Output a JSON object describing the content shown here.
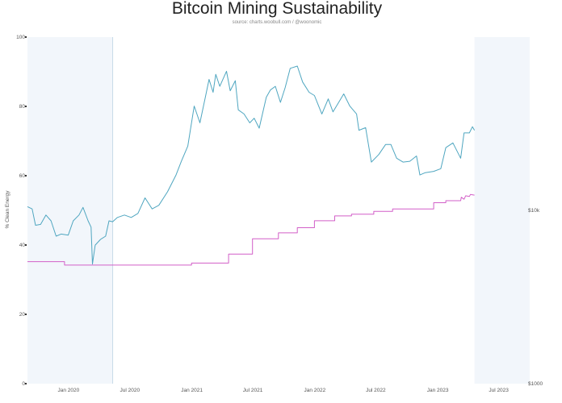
{
  "chart_data": {
    "type": "line",
    "title": "Bitcoin Mining Sustainability",
    "subtitle": "source: charts.woobull.com / @woonomic",
    "ylabel": "% Clean Energy",
    "y_left": {
      "min": 0,
      "max": 100,
      "ticks": [
        "0",
        "20",
        "40",
        "60",
        "80",
        "100"
      ]
    },
    "y_right": {
      "scale": "log",
      "min": 1000,
      "max": 100000,
      "tick_labels": [
        "$10k",
        "$1000"
      ],
      "tick_values": [
        10000,
        1000
      ]
    },
    "x_range": [
      "2019-09-01",
      "2023-10-01"
    ],
    "x_ticks": [
      {
        "date": "2020-01-01",
        "label": "Jan 2020"
      },
      {
        "date": "2020-07-01",
        "label": "Jul 2020"
      },
      {
        "date": "2021-01-01",
        "label": "Jan 2021"
      },
      {
        "date": "2021-07-01",
        "label": "Jul 2021"
      },
      {
        "date": "2022-01-01",
        "label": "Jan 2022"
      },
      {
        "date": "2022-07-01",
        "label": "Jul 2022"
      },
      {
        "date": "2023-01-01",
        "label": "Jan 2023"
      },
      {
        "date": "2023-07-01",
        "label": "Jul 2023"
      }
    ],
    "shaded_periods": [
      {
        "start": "2019-09-01",
        "end": "2020-05-11",
        "color": "#f2f6fb"
      },
      {
        "start": "2023-04-20",
        "end": "2023-10-01",
        "color": "#f2f6fb"
      }
    ],
    "marker_lines": [
      {
        "date": "2020-05-11",
        "color": "#c8dbe8"
      }
    ],
    "series": [
      {
        "axis": "right",
        "color": "#4fa6c0",
        "points": [
          [
            "2019-09-01",
            10500
          ],
          [
            "2019-09-15",
            10200
          ],
          [
            "2019-09-25",
            8200
          ],
          [
            "2019-10-10",
            8300
          ],
          [
            "2019-10-26",
            9400
          ],
          [
            "2019-11-10",
            8700
          ],
          [
            "2019-11-25",
            7100
          ],
          [
            "2019-12-10",
            7300
          ],
          [
            "2019-12-31",
            7200
          ],
          [
            "2020-01-15",
            8700
          ],
          [
            "2020-02-01",
            9400
          ],
          [
            "2020-02-13",
            10400
          ],
          [
            "2020-02-28",
            8700
          ],
          [
            "2020-03-08",
            8000
          ],
          [
            "2020-03-12",
            4900
          ],
          [
            "2020-03-20",
            6300
          ],
          [
            "2020-04-05",
            6800
          ],
          [
            "2020-04-20",
            7100
          ],
          [
            "2020-04-30",
            8700
          ],
          [
            "2020-05-11",
            8600
          ],
          [
            "2020-05-25",
            9100
          ],
          [
            "2020-06-15",
            9400
          ],
          [
            "2020-07-05",
            9100
          ],
          [
            "2020-07-25",
            9600
          ],
          [
            "2020-08-15",
            11800
          ],
          [
            "2020-09-05",
            10200
          ],
          [
            "2020-09-25",
            10700
          ],
          [
            "2020-10-21",
            12800
          ],
          [
            "2020-11-15",
            16000
          ],
          [
            "2020-12-01",
            19200
          ],
          [
            "2020-12-20",
            23500
          ],
          [
            "2021-01-08",
            40000
          ],
          [
            "2021-01-25",
            32000
          ],
          [
            "2021-02-10",
            45000
          ],
          [
            "2021-02-21",
            57000
          ],
          [
            "2021-03-05",
            48000
          ],
          [
            "2021-03-13",
            61000
          ],
          [
            "2021-03-25",
            52000
          ],
          [
            "2021-04-14",
            63500
          ],
          [
            "2021-04-25",
            49000
          ],
          [
            "2021-05-10",
            56000
          ],
          [
            "2021-05-19",
            38000
          ],
          [
            "2021-06-05",
            36000
          ],
          [
            "2021-06-22",
            32000
          ],
          [
            "2021-07-05",
            34000
          ],
          [
            "2021-07-20",
            29800
          ],
          [
            "2021-08-10",
            45000
          ],
          [
            "2021-08-22",
            49500
          ],
          [
            "2021-09-06",
            52000
          ],
          [
            "2021-09-21",
            42000
          ],
          [
            "2021-10-05",
            51000
          ],
          [
            "2021-10-20",
            66000
          ],
          [
            "2021-11-10",
            68000
          ],
          [
            "2021-11-26",
            55000
          ],
          [
            "2021-12-15",
            48000
          ],
          [
            "2021-12-31",
            46000
          ],
          [
            "2022-01-22",
            36000
          ],
          [
            "2022-02-10",
            44000
          ],
          [
            "2022-02-24",
            37000
          ],
          [
            "2022-03-28",
            47000
          ],
          [
            "2022-04-15",
            40000
          ],
          [
            "2022-05-05",
            36000
          ],
          [
            "2022-05-12",
            29000
          ],
          [
            "2022-06-01",
            30000
          ],
          [
            "2022-06-18",
            19000
          ],
          [
            "2022-07-10",
            21000
          ],
          [
            "2022-07-30",
            24000
          ],
          [
            "2022-08-15",
            24000
          ],
          [
            "2022-09-01",
            20000
          ],
          [
            "2022-09-20",
            19000
          ],
          [
            "2022-10-10",
            19200
          ],
          [
            "2022-10-30",
            20600
          ],
          [
            "2022-11-09",
            16000
          ],
          [
            "2022-11-25",
            16500
          ],
          [
            "2022-12-20",
            16800
          ],
          [
            "2023-01-10",
            17400
          ],
          [
            "2023-01-25",
            23000
          ],
          [
            "2023-02-15",
            24500
          ],
          [
            "2023-03-10",
            20000
          ],
          [
            "2023-03-20",
            28000
          ],
          [
            "2023-04-05",
            28000
          ],
          [
            "2023-04-14",
            30400
          ],
          [
            "2023-04-20",
            29000
          ]
        ]
      },
      {
        "axis": "left",
        "color": "#d25fc8",
        "points": [
          [
            "2019-09-01",
            35.2
          ],
          [
            "2019-12-20",
            35.2
          ],
          [
            "2019-12-20",
            34.2
          ],
          [
            "2020-12-31",
            34.2
          ],
          [
            "2020-12-31",
            34.8
          ],
          [
            "2021-04-20",
            34.8
          ],
          [
            "2021-04-20",
            37.4
          ],
          [
            "2021-06-30",
            37.4
          ],
          [
            "2021-06-30",
            41.8
          ],
          [
            "2021-09-15",
            41.8
          ],
          [
            "2021-09-15",
            43.5
          ],
          [
            "2021-11-10",
            43.5
          ],
          [
            "2021-11-10",
            45.0
          ],
          [
            "2021-12-31",
            45.0
          ],
          [
            "2021-12-31",
            47.0
          ],
          [
            "2022-03-01",
            47.0
          ],
          [
            "2022-03-01",
            48.4
          ],
          [
            "2022-04-20",
            48.4
          ],
          [
            "2022-04-20",
            48.9
          ],
          [
            "2022-06-25",
            48.9
          ],
          [
            "2022-06-25",
            49.7
          ],
          [
            "2022-08-20",
            49.7
          ],
          [
            "2022-08-20",
            50.4
          ],
          [
            "2022-12-20",
            50.4
          ],
          [
            "2022-12-20",
            52.2
          ],
          [
            "2023-01-25",
            52.2
          ],
          [
            "2023-01-25",
            52.8
          ],
          [
            "2023-03-10",
            52.8
          ],
          [
            "2023-03-12",
            53.8
          ],
          [
            "2023-03-20",
            53.2
          ],
          [
            "2023-03-25",
            54.2
          ],
          [
            "2023-04-05",
            54.0
          ],
          [
            "2023-04-08",
            54.6
          ],
          [
            "2023-04-20",
            54.4
          ]
        ]
      }
    ],
    "legend": "none",
    "grid": false
  }
}
